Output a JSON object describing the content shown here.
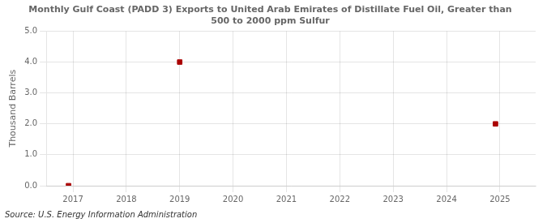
{
  "chart_data": {
    "type": "scatter",
    "title": "Monthly Gulf Coast (PADD 3) Exports to United Arab Emirates of Distillate Fuel Oil, Greater than\n500 to 2000 ppm Sulfur",
    "ylabel": "Thousand Barrels",
    "annotations": [
      "Source: U.S. Energy Information Administration"
    ],
    "x": [
      2016.917,
      2019.0,
      2024.917
    ],
    "values": [
      0.0,
      4.0,
      2.0
    ],
    "color": "#aa0000",
    "marker": "square",
    "xlim": [
      2016.5,
      2025.67
    ],
    "xticks": [
      2017,
      2018,
      2019,
      2020,
      2021,
      2022,
      2023,
      2024,
      2025
    ],
    "ylim": [
      0.0,
      5.0
    ],
    "yticks": [
      {
        "value": 0.0,
        "label": "0.0"
      },
      {
        "value": 1.0,
        "label": "1.0"
      },
      {
        "value": 2.0,
        "label": "2.0"
      },
      {
        "value": 3.0,
        "label": "3.0"
      },
      {
        "value": 4.0,
        "label": "4.0"
      },
      {
        "value": 5.0,
        "label": "5.0"
      }
    ],
    "grid": true
  }
}
